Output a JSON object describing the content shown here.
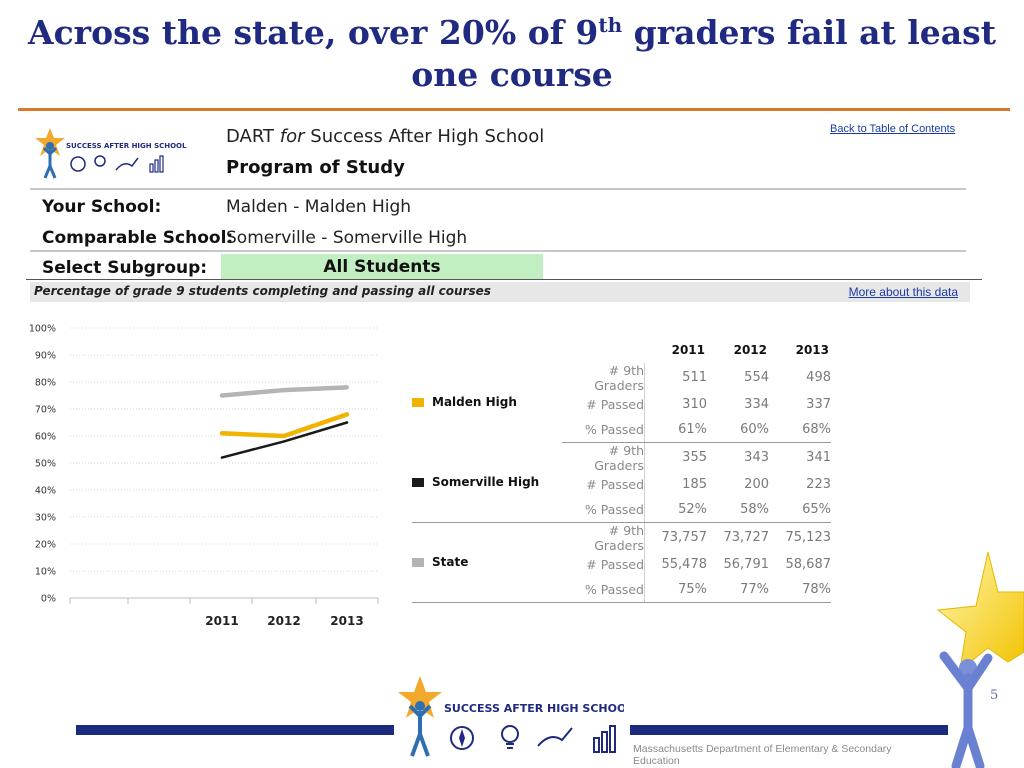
{
  "slide": {
    "title_part1": "Across the state, over 20% of 9",
    "title_sup": "th",
    "title_part2": " graders fail at least one course",
    "page_number": "5",
    "footer_text": "Massachusetts Department of Elementary & Secondary Education",
    "logo_text": "SUCCESS AFTER HIGH SCHOOL"
  },
  "report": {
    "dart": "DART",
    "for_word": "for",
    "dart_rest": "Success After High School",
    "subtitle": "Program of Study",
    "toc_link": "Back to Table of Contents",
    "your_school_label": "Your School:",
    "your_school_value": "Malden - Malden High",
    "comparable_label": "Comparable School:",
    "comparable_value": "Somerville - Somerville High",
    "subgroup_label": "Select Subgroup:",
    "subgroup_value": "All Students",
    "section_title": "Percentage of grade 9 students completing and passing all courses",
    "more_link": "More about this data"
  },
  "colors": {
    "malden": "#f0b400",
    "somerville": "#1a1a1a",
    "state": "#b4b4b4",
    "title": "#1f2a80",
    "accent_rule": "#d9782d",
    "footer_bar": "#1c2b80"
  },
  "table": {
    "years": [
      "2011",
      "2012",
      "2013"
    ],
    "row_labels": [
      "# 9th Graders",
      "# Passed",
      "% Passed"
    ],
    "groups": [
      {
        "name": "Malden High",
        "color_key": "malden",
        "rows": [
          [
            "511",
            "554",
            "498"
          ],
          [
            "310",
            "334",
            "337"
          ],
          [
            "61%",
            "60%",
            "68%"
          ]
        ]
      },
      {
        "name": "Somerville High",
        "color_key": "somerville",
        "rows": [
          [
            "355",
            "343",
            "341"
          ],
          [
            "185",
            "200",
            "223"
          ],
          [
            "52%",
            "58%",
            "65%"
          ]
        ]
      },
      {
        "name": "State",
        "color_key": "state",
        "rows": [
          [
            "73,757",
            "73,727",
            "75,123"
          ],
          [
            "55,478",
            "56,791",
            "58,687"
          ],
          [
            "75%",
            "77%",
            "78%"
          ]
        ]
      }
    ]
  },
  "chart_data": {
    "type": "line",
    "title": "Percentage of grade 9 students completing and passing all courses",
    "categories": [
      "2011",
      "2012",
      "2013"
    ],
    "series": [
      {
        "name": "Malden High",
        "values": [
          61,
          60,
          68
        ]
      },
      {
        "name": "Somerville High",
        "values": [
          52,
          58,
          65
        ]
      },
      {
        "name": "State",
        "values": [
          75,
          77,
          78
        ]
      }
    ],
    "y_ticks": [
      "0%",
      "10%",
      "20%",
      "30%",
      "40%",
      "50%",
      "60%",
      "70%",
      "80%",
      "90%",
      "100%"
    ],
    "ylim": [
      0,
      100
    ],
    "xlabel": "",
    "ylabel": "",
    "grid": true,
    "legend": "right"
  }
}
